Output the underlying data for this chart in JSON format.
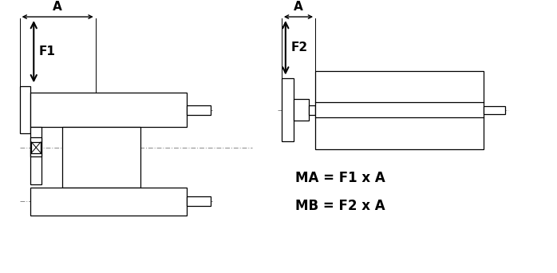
{
  "bg_color": "#ffffff",
  "line_color": "#000000",
  "dash_color": "#888888",
  "figsize": [
    6.98,
    3.42
  ],
  "dpi": 100,
  "formula1": "MA = F1 x A",
  "formula2": "MB = F2 x A",
  "label_A": "A",
  "label_F1": "F1",
  "label_F2": "F2"
}
